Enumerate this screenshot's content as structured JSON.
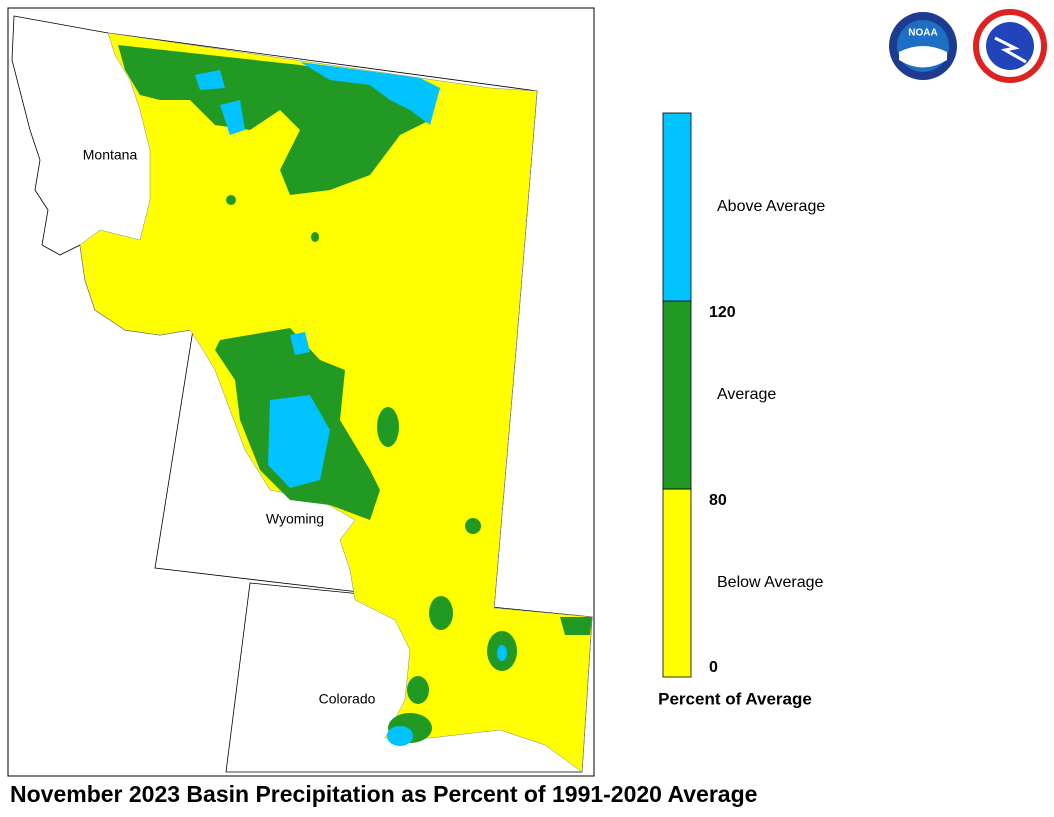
{
  "title": "November 2023 Basin Precipitation as Percent of 1991-2020 Average",
  "map": {
    "states": [
      "Montana",
      "Wyoming",
      "Colorado"
    ]
  },
  "legend": {
    "title": "Percent of Average",
    "ticks": [
      0,
      80,
      120
    ],
    "classes": [
      {
        "label": "Below Average",
        "color": "#ffff00"
      },
      {
        "label": "Average",
        "color": "#229922"
      },
      {
        "label": "Above Average",
        "color": "#00c3ff"
      }
    ]
  },
  "logos": {
    "noaa": "NOAA"
  }
}
